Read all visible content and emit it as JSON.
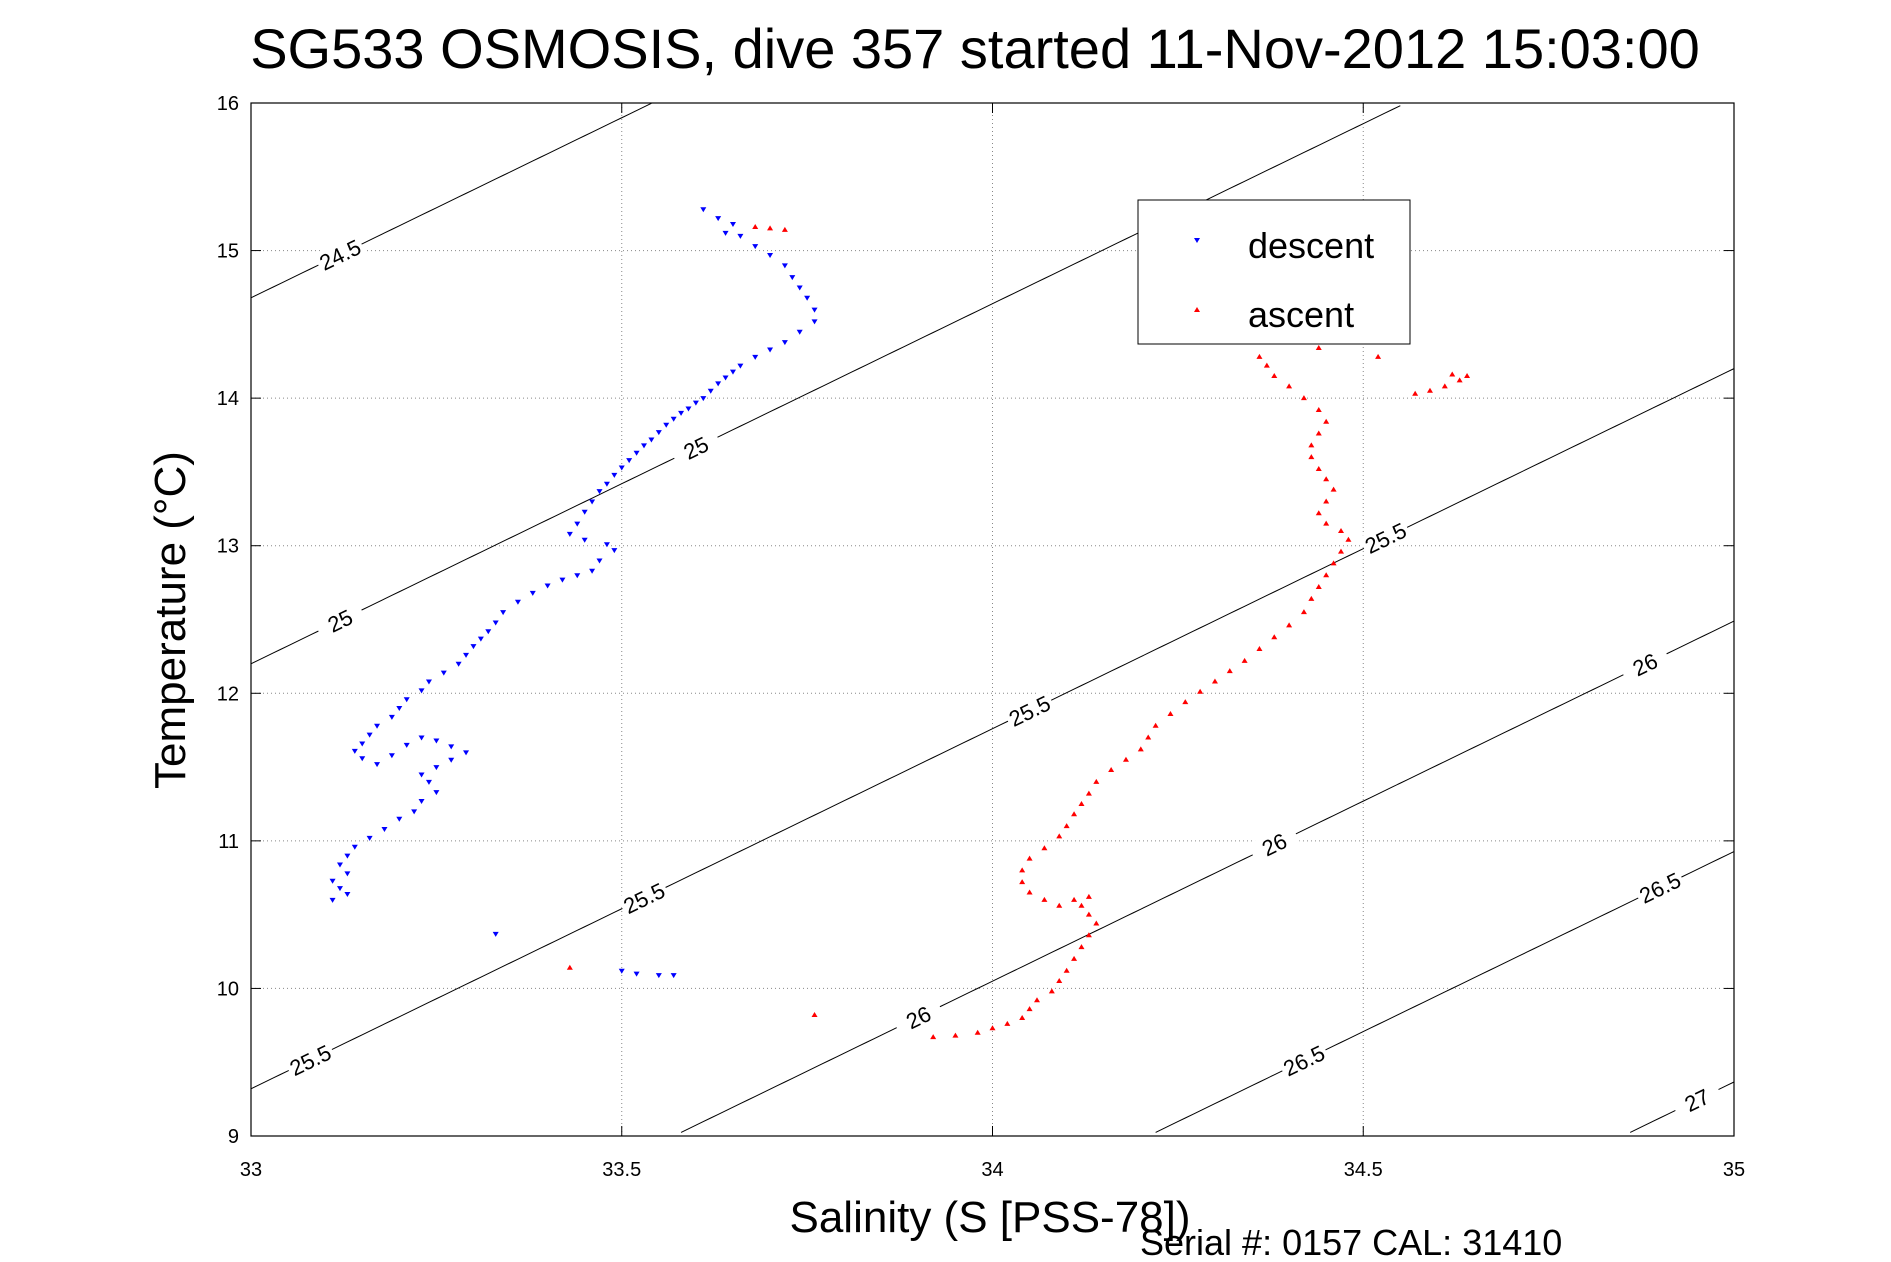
{
  "chart_data": {
    "type": "scatter",
    "title": "SG533 OSMOSIS, dive 357 started 11-Nov-2012 15:03:00",
    "xlabel": "Salinity (S [PSS-78])",
    "ylabel": "Temperature (°C)",
    "xlim": [
      33,
      35
    ],
    "ylim": [
      9,
      16
    ],
    "x_ticks": [
      33,
      33.5,
      34,
      34.5,
      35
    ],
    "y_ticks": [
      9,
      10,
      11,
      12,
      13,
      14,
      15,
      16
    ],
    "x_tick_labels": [
      "33",
      "33.5",
      "34",
      "34.5",
      "35"
    ],
    "y_tick_labels": [
      "9",
      "10",
      "11",
      "12",
      "13",
      "14",
      "15",
      "16"
    ],
    "grid": true,
    "legend_position": "upper-right",
    "series": [
      {
        "name": "descent",
        "color": "#0000ff",
        "marker": "triangle-down",
        "points": [
          [
            33.61,
            15.28
          ],
          [
            33.63,
            15.22
          ],
          [
            33.65,
            15.18
          ],
          [
            33.64,
            15.12
          ],
          [
            33.66,
            15.1
          ],
          [
            33.68,
            15.03
          ],
          [
            33.7,
            14.97
          ],
          [
            33.72,
            14.9
          ],
          [
            33.73,
            14.82
          ],
          [
            33.74,
            14.75
          ],
          [
            33.75,
            14.68
          ],
          [
            33.76,
            14.6
          ],
          [
            33.76,
            14.52
          ],
          [
            33.74,
            14.45
          ],
          [
            33.72,
            14.38
          ],
          [
            33.7,
            14.33
          ],
          [
            33.68,
            14.28
          ],
          [
            33.66,
            14.22
          ],
          [
            33.65,
            14.18
          ],
          [
            33.64,
            14.14
          ],
          [
            33.63,
            14.1
          ],
          [
            33.62,
            14.05
          ],
          [
            33.61,
            14.0
          ],
          [
            33.6,
            13.97
          ],
          [
            33.59,
            13.93
          ],
          [
            33.58,
            13.9
          ],
          [
            33.57,
            13.86
          ],
          [
            33.56,
            13.82
          ],
          [
            33.55,
            13.77
          ],
          [
            33.54,
            13.72
          ],
          [
            33.53,
            13.68
          ],
          [
            33.52,
            13.63
          ],
          [
            33.51,
            13.58
          ],
          [
            33.5,
            13.53
          ],
          [
            33.49,
            13.48
          ],
          [
            33.48,
            13.42
          ],
          [
            33.47,
            13.37
          ],
          [
            33.46,
            13.3
          ],
          [
            33.45,
            13.23
          ],
          [
            33.44,
            13.15
          ],
          [
            33.43,
            13.08
          ],
          [
            33.45,
            13.04
          ],
          [
            33.48,
            13.01
          ],
          [
            33.49,
            12.97
          ],
          [
            33.47,
            12.9
          ],
          [
            33.46,
            12.83
          ],
          [
            33.44,
            12.8
          ],
          [
            33.42,
            12.77
          ],
          [
            33.4,
            12.73
          ],
          [
            33.38,
            12.68
          ],
          [
            33.36,
            12.62
          ],
          [
            33.34,
            12.55
          ],
          [
            33.33,
            12.48
          ],
          [
            33.32,
            12.42
          ],
          [
            33.31,
            12.37
          ],
          [
            33.3,
            12.32
          ],
          [
            33.29,
            12.26
          ],
          [
            33.28,
            12.2
          ],
          [
            33.26,
            12.14
          ],
          [
            33.24,
            12.08
          ],
          [
            33.23,
            12.02
          ],
          [
            33.21,
            11.96
          ],
          [
            33.2,
            11.9
          ],
          [
            33.19,
            11.84
          ],
          [
            33.17,
            11.78
          ],
          [
            33.16,
            11.72
          ],
          [
            33.15,
            11.66
          ],
          [
            33.14,
            11.61
          ],
          [
            33.15,
            11.56
          ],
          [
            33.17,
            11.52
          ],
          [
            33.19,
            11.58
          ],
          [
            33.21,
            11.65
          ],
          [
            33.23,
            11.7
          ],
          [
            33.25,
            11.68
          ],
          [
            33.27,
            11.64
          ],
          [
            33.29,
            11.6
          ],
          [
            33.27,
            11.55
          ],
          [
            33.25,
            11.5
          ],
          [
            33.23,
            11.45
          ],
          [
            33.24,
            11.4
          ],
          [
            33.25,
            11.33
          ],
          [
            33.23,
            11.27
          ],
          [
            33.22,
            11.2
          ],
          [
            33.2,
            11.15
          ],
          [
            33.18,
            11.08
          ],
          [
            33.16,
            11.02
          ],
          [
            33.14,
            10.96
          ],
          [
            33.13,
            10.9
          ],
          [
            33.12,
            10.84
          ],
          [
            33.13,
            10.78
          ],
          [
            33.11,
            10.73
          ],
          [
            33.12,
            10.68
          ],
          [
            33.13,
            10.64
          ],
          [
            33.11,
            10.6
          ],
          [
            33.33,
            10.37
          ],
          [
            33.5,
            10.12
          ],
          [
            33.52,
            10.1
          ],
          [
            33.55,
            10.09
          ],
          [
            33.57,
            10.09
          ]
        ]
      },
      {
        "name": "ascent",
        "color": "#ff0000",
        "marker": "triangle-up",
        "points": [
          [
            33.92,
            9.67
          ],
          [
            33.95,
            9.68
          ],
          [
            33.98,
            9.7
          ],
          [
            34.0,
            9.73
          ],
          [
            34.02,
            9.76
          ],
          [
            34.04,
            9.8
          ],
          [
            34.05,
            9.86
          ],
          [
            34.06,
            9.92
          ],
          [
            34.08,
            9.98
          ],
          [
            34.09,
            10.05
          ],
          [
            34.1,
            10.12
          ],
          [
            34.11,
            10.2
          ],
          [
            34.12,
            10.28
          ],
          [
            34.13,
            10.36
          ],
          [
            34.14,
            10.44
          ],
          [
            34.13,
            10.5
          ],
          [
            34.12,
            10.56
          ],
          [
            34.13,
            10.62
          ],
          [
            34.11,
            10.6
          ],
          [
            34.09,
            10.56
          ],
          [
            34.07,
            10.6
          ],
          [
            34.05,
            10.65
          ],
          [
            34.04,
            10.72
          ],
          [
            34.04,
            10.8
          ],
          [
            34.05,
            10.88
          ],
          [
            34.07,
            10.95
          ],
          [
            34.09,
            11.03
          ],
          [
            34.1,
            11.1
          ],
          [
            34.11,
            11.18
          ],
          [
            34.12,
            11.25
          ],
          [
            34.13,
            11.32
          ],
          [
            34.14,
            11.4
          ],
          [
            34.16,
            11.48
          ],
          [
            34.18,
            11.55
          ],
          [
            34.2,
            11.62
          ],
          [
            34.21,
            11.7
          ],
          [
            34.22,
            11.78
          ],
          [
            34.24,
            11.86
          ],
          [
            34.26,
            11.94
          ],
          [
            34.28,
            12.01
          ],
          [
            34.3,
            12.08
          ],
          [
            34.32,
            12.15
          ],
          [
            34.34,
            12.22
          ],
          [
            34.36,
            12.3
          ],
          [
            34.38,
            12.38
          ],
          [
            34.4,
            12.46
          ],
          [
            34.42,
            12.55
          ],
          [
            34.43,
            12.64
          ],
          [
            34.44,
            12.72
          ],
          [
            34.45,
            12.8
          ],
          [
            34.46,
            12.88
          ],
          [
            34.47,
            12.96
          ],
          [
            34.48,
            13.04
          ],
          [
            34.47,
            13.1
          ],
          [
            34.45,
            13.15
          ],
          [
            34.44,
            13.22
          ],
          [
            34.45,
            13.3
          ],
          [
            34.46,
            13.38
          ],
          [
            34.45,
            13.45
          ],
          [
            34.44,
            13.52
          ],
          [
            34.43,
            13.6
          ],
          [
            34.43,
            13.68
          ],
          [
            34.44,
            13.76
          ],
          [
            34.45,
            13.84
          ],
          [
            34.44,
            13.92
          ],
          [
            34.42,
            14.0
          ],
          [
            34.4,
            14.08
          ],
          [
            34.38,
            14.15
          ],
          [
            34.37,
            14.22
          ],
          [
            34.36,
            14.28
          ],
          [
            34.44,
            14.34
          ],
          [
            34.52,
            14.28
          ],
          [
            34.57,
            14.03
          ],
          [
            34.59,
            14.05
          ],
          [
            34.61,
            14.08
          ],
          [
            34.63,
            14.12
          ],
          [
            34.64,
            14.15
          ],
          [
            34.62,
            14.16
          ],
          [
            33.68,
            15.16
          ],
          [
            33.7,
            15.15
          ],
          [
            33.72,
            15.14
          ],
          [
            33.76,
            9.82
          ],
          [
            33.43,
            10.14
          ]
        ]
      }
    ],
    "density_contours": [
      {
        "value": 24.5,
        "labels": [
          "24.5"
        ]
      },
      {
        "value": 25,
        "labels": [
          "25",
          "25"
        ]
      },
      {
        "value": 25.5,
        "labels": [
          "25.5",
          "25.5",
          "25.5",
          "25.5"
        ]
      },
      {
        "value": 26,
        "labels": [
          "26",
          "26",
          "26"
        ]
      },
      {
        "value": 26.5,
        "labels": [
          "26.5",
          "26.5"
        ]
      },
      {
        "value": 27,
        "labels": [
          "27"
        ]
      }
    ]
  },
  "footer": {
    "serial_text": "Serial #: 0157  CAL: 31410"
  }
}
